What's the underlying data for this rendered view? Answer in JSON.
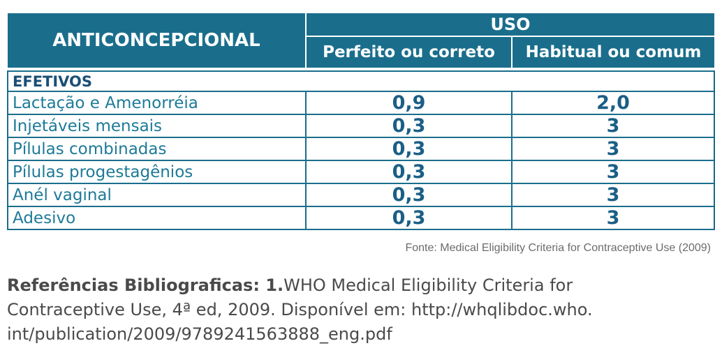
{
  "table": {
    "header_main": "ANTICONCEPCIONAL",
    "header_group": "USO",
    "header_cols": [
      "Perfeito ou correto",
      "Habitual ou comum"
    ],
    "section_label": "EFETIVOS",
    "rows": [
      {
        "label": "Lactação e Amenorréia",
        "perfeito": "0,9",
        "habitual": "2,0"
      },
      {
        "label": "Injetáveis mensais",
        "perfeito": "0,3",
        "habitual": "3"
      },
      {
        "label": "Pílulas combinadas",
        "perfeito": "0,3",
        "habitual": "3"
      },
      {
        "label": "Pílulas progestagênios",
        "perfeito": "0,3",
        "habitual": "3"
      },
      {
        "label": "Anél vaginal",
        "perfeito": "0,3",
        "habitual": "3"
      },
      {
        "label": "Adesivo",
        "perfeito": "0,3",
        "habitual": "3"
      }
    ],
    "source": "Fonte: Medical Eligibility Criteria for Contraceptive Use (2009)"
  },
  "references": {
    "heading": "Referências Bibliograficas: 1.",
    "line1": "WHO Medical Eligibility Criteria for",
    "line2": "Contraceptive Use, 4ª ed, 2009. Disponível em: http://whqlibdoc.who.",
    "line3": "int/publication/2009/9789241563888_eng.pdf"
  },
  "colors": {
    "header_bg": "#1a6e8c",
    "text_teal": "#1d7a98",
    "number_blue": "#1a5f86"
  }
}
